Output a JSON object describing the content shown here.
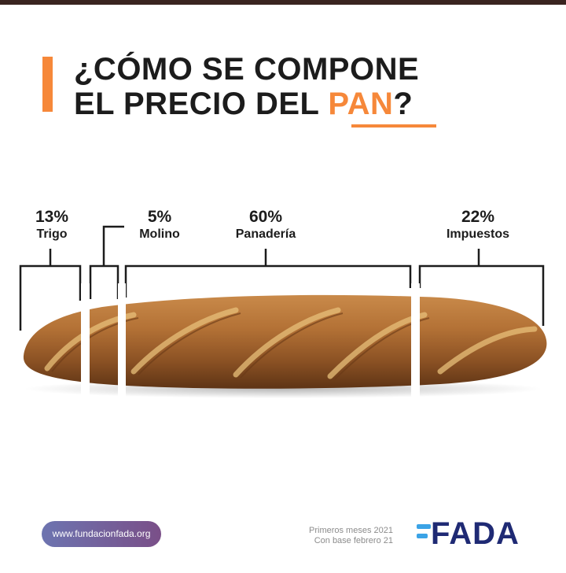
{
  "title": {
    "line1": "¿CÓMO SE COMPONE",
    "line2_prefix": "EL PRECIO DEL ",
    "line2_highlight": "PAN",
    "line2_suffix": "?"
  },
  "segments": [
    {
      "percent": "13%",
      "label": "Trigo"
    },
    {
      "percent": "5%",
      "label": "Molino"
    },
    {
      "percent": "60%",
      "label": "Panadería"
    },
    {
      "percent": "22%",
      "label": "Impuestos"
    }
  ],
  "footer": {
    "website": "www.fundacionfada.org",
    "note_line1": "Primeros meses 2021",
    "note_line2": "Con base febrero 21",
    "logo_text": "FADA"
  },
  "colors": {
    "accent": "#f6883a",
    "dark": "#1c1c1c",
    "brand_blue": "#1f2a74",
    "topbar": "#3a2420"
  }
}
